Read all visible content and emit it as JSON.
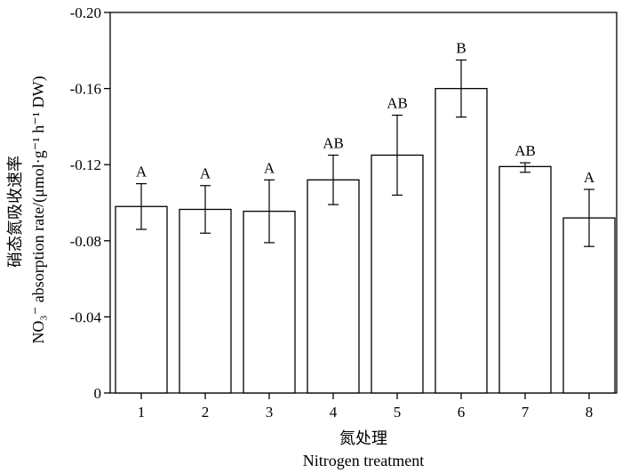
{
  "chart_data": {
    "type": "bar",
    "categories": [
      "1",
      "2",
      "3",
      "4",
      "5",
      "6",
      "7",
      "8"
    ],
    "values": [
      -0.098,
      -0.0965,
      -0.0955,
      -0.112,
      -0.125,
      -0.16,
      -0.119,
      -0.092
    ],
    "error_upper": [
      -0.11,
      -0.109,
      -0.112,
      -0.125,
      -0.146,
      -0.175,
      -0.121,
      -0.107
    ],
    "error_lower": [
      -0.086,
      -0.084,
      -0.079,
      -0.099,
      -0.104,
      -0.145,
      -0.116,
      -0.077
    ],
    "significance": [
      "A",
      "A",
      "A",
      "AB",
      "AB",
      "B",
      "AB",
      "A"
    ],
    "yticks": [
      "0",
      "-0.04",
      "-0.08",
      "-0.12",
      "-0.16",
      "-0.20"
    ],
    "ytick_values": [
      0,
      -0.04,
      -0.08,
      -0.12,
      -0.16,
      -0.2
    ],
    "ylim": [
      0,
      -0.2
    ],
    "ylabel_cn": "硝态氮吸收速率",
    "ylabel_en": "NO₃⁻ absorption rate/(μmol·g⁻¹ h⁻¹ DW)",
    "xlabel_cn": "氮处理",
    "xlabel_en": "Nitrogen treatment",
    "grid": false,
    "legend": "none"
  }
}
